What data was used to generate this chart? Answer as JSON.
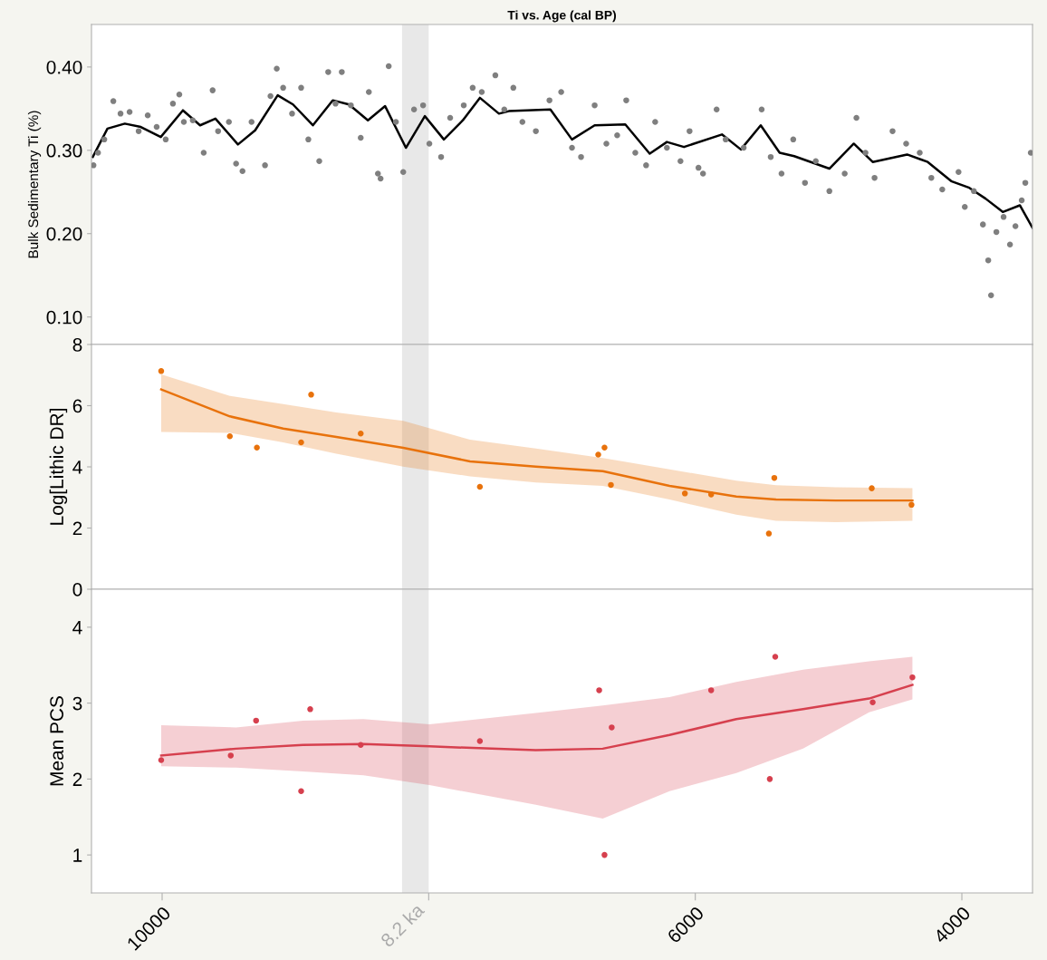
{
  "chart_data": [
    {
      "type": "scatter",
      "title": "Ti vs. Age (cal BP)",
      "ylabel": "Bulk Sedimentary Ti (%)",
      "marker": "circle",
      "tick_labels": "y",
      "xlim": [
        10530,
        3470
      ],
      "xticks": [
        10000,
        6000,
        4000
      ],
      "ylim": [
        0.067,
        0.451
      ],
      "yticks": [
        {
          "value": 0.1,
          "label": "0.10"
        },
        {
          "value": 0.2,
          "label": "0.20"
        },
        {
          "value": 0.3,
          "label": "0.30"
        },
        {
          "value": 0.4,
          "label": "0.40"
        }
      ],
      "bands": [
        {
          "axis": "x",
          "from": 8200,
          "to": 8000,
          "color": "#e8e8e8"
        }
      ],
      "series": [
        {
          "color": "#7f7f7f",
          "x": [
            10515,
            10481,
            10434,
            10366,
            10312,
            10244,
            10176,
            10108,
            10041,
            9973,
            9919,
            9871,
            9837,
            9770,
            9688,
            9621,
            9580,
            9499,
            9445,
            9397,
            9329,
            9228,
            9187,
            9140,
            9092,
            9025,
            8957,
            8903,
            8821,
            8754,
            8699,
            8652,
            8584,
            8510,
            8449,
            8381,
            8361,
            8300,
            8246,
            8191,
            8110,
            8042,
            7995,
            7907,
            7839,
            7737,
            7670,
            7602,
            7500,
            7433,
            7365,
            7297,
            7196,
            7094,
            7006,
            6925,
            6857,
            6755,
            6667,
            6586,
            6518,
            6450,
            6369,
            6301,
            6213,
            6111,
            6043,
            5976,
            5942,
            5840,
            5772,
            5637,
            5502,
            5434,
            5353,
            5265,
            5177,
            5096,
            4994,
            4879,
            4791,
            4723,
            4655,
            4520,
            4418,
            4316,
            4229,
            4147,
            4025,
            3978,
            3910,
            3842,
            3802,
            3781,
            3741,
            3687,
            3639,
            3598,
            3551,
            3524,
            3483
          ],
          "values": [
            0.282,
            0.297,
            0.313,
            0.359,
            0.344,
            0.346,
            0.323,
            0.342,
            0.328,
            0.313,
            0.356,
            0.367,
            0.334,
            0.336,
            0.297,
            0.372,
            0.323,
            0.334,
            0.284,
            0.275,
            0.334,
            0.282,
            0.365,
            0.398,
            0.375,
            0.344,
            0.375,
            0.313,
            0.287,
            0.394,
            0.356,
            0.394,
            0.354,
            0.315,
            0.37,
            0.272,
            0.266,
            0.401,
            0.334,
            0.274,
            0.349,
            0.354,
            0.308,
            0.292,
            0.339,
            0.354,
            0.375,
            0.37,
            0.39,
            0.349,
            0.375,
            0.334,
            0.323,
            0.36,
            0.37,
            0.303,
            0.292,
            0.354,
            0.308,
            0.318,
            0.36,
            0.297,
            0.282,
            0.334,
            0.303,
            0.287,
            0.323,
            0.279,
            0.272,
            0.349,
            0.313,
            0.303,
            0.349,
            0.292,
            0.272,
            0.313,
            0.261,
            0.287,
            0.251,
            0.272,
            0.339,
            0.297,
            0.267,
            0.323,
            0.308,
            0.297,
            0.267,
            0.253,
            0.274,
            0.232,
            0.251,
            0.211,
            0.168,
            0.126,
            0.202,
            0.22,
            0.187,
            0.209,
            0.24,
            0.261,
            0.297
          ]
        },
        {
          "type": "line",
          "color": "#000000",
          "marker": "none",
          "x": [
            10520,
            10410,
            10280,
            10160,
            10010,
            9844,
            9715,
            9600,
            9431,
            9302,
            9133,
            9018,
            8869,
            8720,
            8598,
            8456,
            8327,
            8171,
            8029,
            7886,
            7744,
            7616,
            7473,
            7399,
            7087,
            6925,
            6755,
            6525,
            6342,
            6213,
            6085,
            5800,
            5658,
            5509,
            5367,
            5258,
            4994,
            4811,
            4669,
            4411,
            4256,
            4080,
            3944,
            3822,
            3693,
            3565,
            3470
          ],
          "values": [
            0.292,
            0.326,
            0.332,
            0.328,
            0.316,
            0.348,
            0.33,
            0.338,
            0.307,
            0.324,
            0.366,
            0.355,
            0.33,
            0.36,
            0.355,
            0.336,
            0.353,
            0.303,
            0.341,
            0.313,
            0.336,
            0.363,
            0.344,
            0.347,
            0.349,
            0.313,
            0.33,
            0.331,
            0.296,
            0.31,
            0.304,
            0.319,
            0.301,
            0.33,
            0.297,
            0.293,
            0.278,
            0.308,
            0.286,
            0.295,
            0.286,
            0.263,
            0.255,
            0.242,
            0.226,
            0.234,
            0.207
          ]
        }
      ]
    },
    {
      "type": "scatter",
      "ylabel": "Log[Lithic DR]",
      "marker": "circle",
      "tick_labels": "y",
      "xlim": [
        10530,
        3470
      ],
      "xticks": [
        10000,
        6000,
        4000
      ],
      "ylim": [
        0,
        8
      ],
      "yticks": [
        0,
        2,
        4,
        6,
        8
      ],
      "bands": [
        {
          "axis": "x",
          "from": 8200,
          "to": 8000,
          "color": "#e8e8e8"
        }
      ],
      "series": [
        {
          "color": "#e8720c",
          "x": [
            10007,
            9492,
            9289,
            8957,
            8882,
            8510,
            7616,
            6728,
            6681,
            6633,
            6078,
            5881,
            5448,
            5407,
            4676,
            4378
          ],
          "values": [
            7.13,
            5.0,
            4.63,
            4.8,
            6.36,
            5.09,
            3.35,
            4.4,
            4.63,
            3.41,
            3.13,
            3.1,
            1.82,
            3.64,
            3.3,
            2.76
          ]
        },
        {
          "type": "line",
          "color": "#e8720c",
          "marker": "none",
          "x": [
            10007,
            9492,
            9092,
            8693,
            8191,
            7690,
            7196,
            6694,
            6193,
            5692,
            5394,
            4947,
            4371
          ],
          "values": [
            6.53,
            5.65,
            5.25,
            4.98,
            4.62,
            4.18,
            4.01,
            3.86,
            3.38,
            3.03,
            2.93,
            2.9,
            2.9
          ],
          "upper": [
            7.02,
            6.32,
            6.05,
            5.78,
            5.5,
            4.89,
            4.6,
            4.29,
            3.92,
            3.55,
            3.4,
            3.33,
            3.3
          ],
          "lower": [
            5.14,
            5.11,
            4.8,
            4.43,
            4.01,
            3.69,
            3.49,
            3.38,
            2.93,
            2.44,
            2.24,
            2.19,
            2.24
          ]
        }
      ]
    },
    {
      "type": "scatter",
      "ylabel": "Mean PCS",
      "marker": "circle",
      "xlim": [
        10530,
        3470
      ],
      "xticks": [
        10000,
        {
          "value": 8000,
          "label": null
        },
        6000,
        4000
      ],
      "ylim": [
        0.5,
        4.5
      ],
      "yticks": [
        1,
        2,
        3,
        4
      ],
      "bands": [
        {
          "axis": "x",
          "from": 8200,
          "to": 8000,
          "color": "#e8e8e8",
          "label": "8.2 ka"
        }
      ],
      "series": [
        {
          "color": "#d6404e",
          "x": [
            10007,
            9485,
            9295,
            8957,
            8889,
            8510,
            7616,
            6721,
            6627,
            6681,
            5881,
            5441,
            5400,
            4669,
            4371
          ],
          "values": [
            2.25,
            2.31,
            2.77,
            1.84,
            2.92,
            2.45,
            2.5,
            3.17,
            2.68,
            1.0,
            3.17,
            2.0,
            3.61,
            3.01,
            3.34
          ]
        },
        {
          "type": "line",
          "color": "#d6404e",
          "marker": "none",
          "x": [
            10007,
            9445,
            8943,
            8489,
            7995,
            7196,
            6694,
            6193,
            5692,
            5191,
            4696,
            4371
          ],
          "values": [
            2.31,
            2.4,
            2.45,
            2.46,
            2.43,
            2.38,
            2.4,
            2.58,
            2.79,
            2.92,
            3.06,
            3.24
          ],
          "upper": [
            2.71,
            2.68,
            2.77,
            2.79,
            2.72,
            2.87,
            2.97,
            3.08,
            3.28,
            3.44,
            3.55,
            3.61
          ],
          "lower": [
            2.17,
            2.15,
            2.1,
            2.05,
            1.92,
            1.66,
            1.48,
            1.84,
            2.08,
            2.4,
            2.88,
            3.05
          ]
        }
      ]
    }
  ]
}
